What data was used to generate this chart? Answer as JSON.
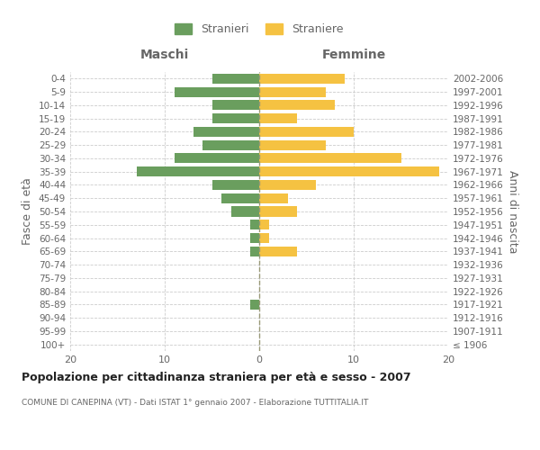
{
  "age_groups": [
    "100+",
    "95-99",
    "90-94",
    "85-89",
    "80-84",
    "75-79",
    "70-74",
    "65-69",
    "60-64",
    "55-59",
    "50-54",
    "45-49",
    "40-44",
    "35-39",
    "30-34",
    "25-29",
    "20-24",
    "15-19",
    "10-14",
    "5-9",
    "0-4"
  ],
  "birth_years": [
    "≤ 1906",
    "1907-1911",
    "1912-1916",
    "1917-1921",
    "1922-1926",
    "1927-1931",
    "1932-1936",
    "1937-1941",
    "1942-1946",
    "1947-1951",
    "1952-1956",
    "1957-1961",
    "1962-1966",
    "1967-1971",
    "1972-1976",
    "1977-1981",
    "1982-1986",
    "1987-1991",
    "1992-1996",
    "1997-2001",
    "2002-2006"
  ],
  "maschi": [
    0,
    0,
    0,
    1,
    0,
    0,
    0,
    1,
    1,
    1,
    3,
    4,
    5,
    13,
    9,
    6,
    7,
    5,
    5,
    9,
    5
  ],
  "femmine": [
    0,
    0,
    0,
    0,
    0,
    0,
    0,
    4,
    1,
    1,
    4,
    3,
    6,
    19,
    15,
    7,
    10,
    4,
    8,
    7,
    9
  ],
  "color_maschi": "#6a9e5e",
  "color_femmine": "#f5c242",
  "title": "Popolazione per cittadinanza straniera per età e sesso - 2007",
  "subtitle": "COMUNE DI CANEPINA (VT) - Dati ISTAT 1° gennaio 2007 - Elaborazione TUTTITALIA.IT",
  "ylabel_left": "Fasce di età",
  "ylabel_right": "Anni di nascita",
  "label_maschi": "Maschi",
  "label_femmine": "Femmine",
  "legend_maschi": "Stranieri",
  "legend_femmine": "Straniere",
  "xlim": 20,
  "background_color": "#ffffff",
  "grid_color": "#cccccc",
  "text_color": "#666666",
  "dashed_line_color": "#999977"
}
